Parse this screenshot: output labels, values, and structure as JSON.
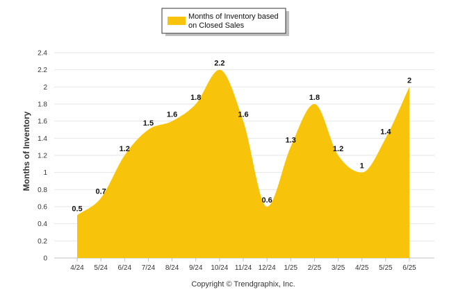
{
  "chart_data": {
    "type": "area",
    "categories": [
      "4/24",
      "5/24",
      "6/24",
      "7/24",
      "8/24",
      "9/24",
      "10/24",
      "11/24",
      "12/24",
      "1/25",
      "2/25",
      "3/25",
      "4/25",
      "5/25",
      "6/25"
    ],
    "series": [
      {
        "name": "Months of Inventory based on Closed Sales",
        "legend_lines": [
          "Months of Inventory based",
          "on Closed Sales"
        ],
        "values": [
          0.5,
          0.7,
          1.2,
          1.5,
          1.6,
          1.8,
          2.2,
          1.6,
          0.6,
          1.3,
          1.8,
          1.2,
          1,
          1.4,
          2
        ],
        "data_labels": [
          "0.5",
          "0.7",
          "1.2",
          "1.5",
          "1.6",
          "1.8",
          "2.2",
          "1.6",
          "0.6",
          "1.3",
          "1.8",
          "1.2",
          "1",
          "1.4",
          "2"
        ],
        "color": "#f7c30b"
      }
    ],
    "ylabel": "Months of Inventory",
    "ylim": [
      0,
      2.4
    ],
    "yticks": [
      "0",
      "0.2",
      "0.4",
      "0.6",
      "0.8",
      "1",
      "1.2",
      "1.4",
      "1.6",
      "1.8",
      "2",
      "2.2",
      "2.4"
    ],
    "grid": true,
    "legend_position": "top-center"
  },
  "footer": {
    "copyright": "Copyright © Trendgraphix, Inc."
  },
  "colors": {
    "area": "#f7c30b",
    "grid": "#e6e6e6",
    "axis": "#c0c0c0"
  }
}
